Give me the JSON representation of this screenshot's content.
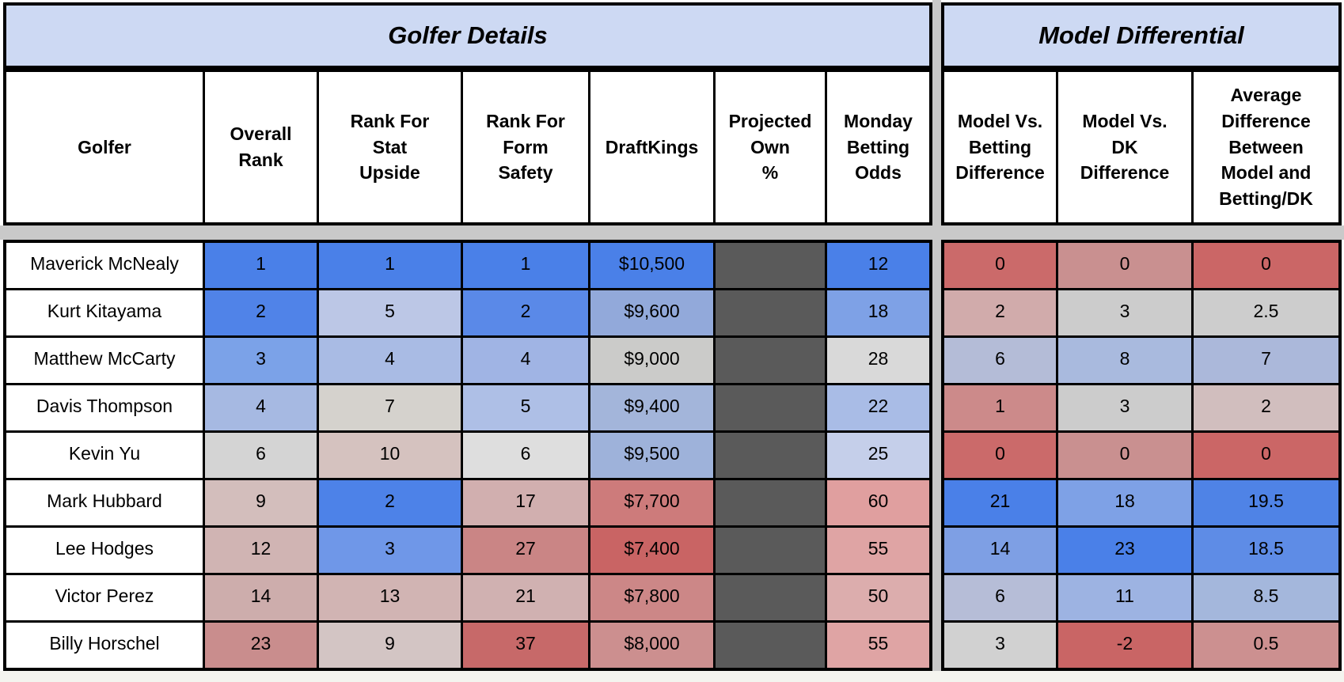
{
  "palette": {
    "title_band_bg": "#cdd9f3",
    "hidden_column_bg": "#5a5a5a",
    "separator_band": "#c9c9c9",
    "bottom_margin": "#f4f4ef",
    "strong_blue": "#4a80e8",
    "strong_red": "#cb6666",
    "neutral_gray": "#cccccc"
  },
  "golfer_table": {
    "title": "Golfer Details",
    "headers": [
      "Golfer",
      "Overall\nRank",
      "Rank For\nStat\nUpside",
      "Rank For\nForm\nSafety",
      "DraftKings",
      "Projected\nOwn\n%",
      "Monday\nBetting\nOdds"
    ]
  },
  "model_table": {
    "title": "Model Differential",
    "headers": [
      "Model Vs.\nBetting\nDifference",
      "Model Vs.\nDK\nDifference",
      "Average\nDifference\nBetween\nModel and\nBetting/DK"
    ]
  },
  "rows": [
    {
      "golfer": "Maverick McNealy",
      "details": [
        {
          "v": "1",
          "bg": "#4a80e8"
        },
        {
          "v": "1",
          "bg": "#4a80e8"
        },
        {
          "v": "1",
          "bg": "#4a80e8"
        },
        {
          "v": "$10,500",
          "bg": "#4a80e8"
        },
        {
          "v": "",
          "bg": "#5a5a5a"
        },
        {
          "v": "12",
          "bg": "#4a80e8"
        }
      ],
      "model": [
        {
          "v": "0",
          "bg": "#cb6a6a"
        },
        {
          "v": "0",
          "bg": "#c99090"
        },
        {
          "v": "0",
          "bg": "#cb6666"
        }
      ]
    },
    {
      "golfer": "Kurt Kitayama",
      "details": [
        {
          "v": "2",
          "bg": "#5083e8"
        },
        {
          "v": "5",
          "bg": "#bcc7e6"
        },
        {
          "v": "2",
          "bg": "#5a89e8"
        },
        {
          "v": "$9,600",
          "bg": "#92a9da"
        },
        {
          "v": "",
          "bg": "#5a5a5a"
        },
        {
          "v": "18",
          "bg": "#7ea1e6"
        }
      ],
      "model": [
        {
          "v": "2",
          "bg": "#d1abab"
        },
        {
          "v": "3",
          "bg": "#cccccc"
        },
        {
          "v": "2.5",
          "bg": "#cdcdcd"
        }
      ]
    },
    {
      "golfer": "Matthew McCarty",
      "details": [
        {
          "v": "3",
          "bg": "#7ba2e8"
        },
        {
          "v": "4",
          "bg": "#a9bbe4"
        },
        {
          "v": "4",
          "bg": "#a0b4e4"
        },
        {
          "v": "$9,000",
          "bg": "#cbcbc9"
        },
        {
          "v": "",
          "bg": "#5a5a5a"
        },
        {
          "v": "28",
          "bg": "#d9d9d9"
        }
      ],
      "model": [
        {
          "v": "6",
          "bg": "#b4bcd7"
        },
        {
          "v": "8",
          "bg": "#a9bade"
        },
        {
          "v": "7",
          "bg": "#abb8da"
        }
      ]
    },
    {
      "golfer": "Davis Thompson",
      "details": [
        {
          "v": "4",
          "bg": "#a6b9e2"
        },
        {
          "v": "7",
          "bg": "#d5d2cd"
        },
        {
          "v": "5",
          "bg": "#aebfe6"
        },
        {
          "v": "$9,400",
          "bg": "#a3b5da"
        },
        {
          "v": "",
          "bg": "#5a5a5a"
        },
        {
          "v": "22",
          "bg": "#a9bce6"
        }
      ],
      "model": [
        {
          "v": "1",
          "bg": "#cc8a8a"
        },
        {
          "v": "3",
          "bg": "#cccccc"
        },
        {
          "v": "2",
          "bg": "#d1bebe"
        }
      ]
    },
    {
      "golfer": "Kevin Yu",
      "details": [
        {
          "v": "6",
          "bg": "#d4d4d4"
        },
        {
          "v": "10",
          "bg": "#d5c2bf"
        },
        {
          "v": "6",
          "bg": "#dedede"
        },
        {
          "v": "$9,500",
          "bg": "#9eb2da"
        },
        {
          "v": "",
          "bg": "#5a5a5a"
        },
        {
          "v": "25",
          "bg": "#c5cfea"
        }
      ],
      "model": [
        {
          "v": "0",
          "bg": "#cb6a6a"
        },
        {
          "v": "0",
          "bg": "#c99090"
        },
        {
          "v": "0",
          "bg": "#cb6666"
        }
      ]
    },
    {
      "golfer": "Mark Hubbard",
      "details": [
        {
          "v": "9",
          "bg": "#d3bebc"
        },
        {
          "v": "2",
          "bg": "#4d82e8"
        },
        {
          "v": "17",
          "bg": "#d1afaf"
        },
        {
          "v": "$7,700",
          "bg": "#cd7b7b"
        },
        {
          "v": "",
          "bg": "#5a5a5a"
        },
        {
          "v": "60",
          "bg": "#e09f9f"
        }
      ],
      "model": [
        {
          "v": "21",
          "bg": "#4a80e8"
        },
        {
          "v": "18",
          "bg": "#7ea1e6"
        },
        {
          "v": "19.5",
          "bg": "#4f83e6"
        }
      ]
    },
    {
      "golfer": "Lee Hodges",
      "details": [
        {
          "v": "12",
          "bg": "#d0b4b3"
        },
        {
          "v": "3",
          "bg": "#6f97e8"
        },
        {
          "v": "27",
          "bg": "#ca8585"
        },
        {
          "v": "$7,400",
          "bg": "#c96464"
        },
        {
          "v": "",
          "bg": "#5a5a5a"
        },
        {
          "v": "55",
          "bg": "#dfa4a4"
        }
      ],
      "model": [
        {
          "v": "14",
          "bg": "#7e9fe4"
        },
        {
          "v": "23",
          "bg": "#4a80e8"
        },
        {
          "v": "18.5",
          "bg": "#5e8ce6"
        }
      ]
    },
    {
      "golfer": "Victor Perez",
      "details": [
        {
          "v": "14",
          "bg": "#cdadac"
        },
        {
          "v": "13",
          "bg": "#d1b4b3"
        },
        {
          "v": "21",
          "bg": "#d0b1b1"
        },
        {
          "v": "$7,800",
          "bg": "#cc8787"
        },
        {
          "v": "",
          "bg": "#5a5a5a"
        },
        {
          "v": "50",
          "bg": "#dcadad"
        }
      ],
      "model": [
        {
          "v": "6",
          "bg": "#b6bdd7"
        },
        {
          "v": "11",
          "bg": "#9db3e2"
        },
        {
          "v": "8.5",
          "bg": "#a4b7dc"
        }
      ]
    },
    {
      "golfer": "Billy Horschel",
      "details": [
        {
          "v": "23",
          "bg": "#c98d8d"
        },
        {
          "v": "9",
          "bg": "#d3c5c4"
        },
        {
          "v": "37",
          "bg": "#c76969"
        },
        {
          "v": "$8,000",
          "bg": "#cc8f8f"
        },
        {
          "v": "",
          "bg": "#5a5a5a"
        },
        {
          "v": "55",
          "bg": "#dfa4a4"
        }
      ],
      "model": [
        {
          "v": "3",
          "bg": "#d1d1d1"
        },
        {
          "v": "-2",
          "bg": "#c96565"
        },
        {
          "v": "0.5",
          "bg": "#cc9090"
        }
      ]
    }
  ]
}
